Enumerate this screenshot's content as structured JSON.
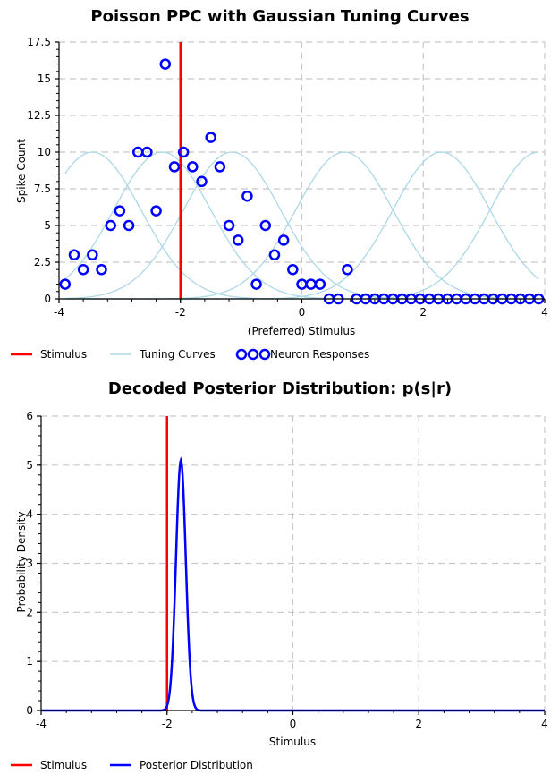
{
  "chart_data": [
    {
      "type": "scatter",
      "title": "Poisson PPC with Gaussian Tuning Curves",
      "xlabel": "(Preferred) Stimulus",
      "ylabel": "Spike Count",
      "xlim": [
        -4,
        4
      ],
      "ylim": [
        0,
        17.5
      ],
      "xticks": [
        -4,
        -2,
        0,
        2,
        4
      ],
      "yticks": [
        0,
        2.5,
        5,
        7.5,
        10,
        12.5,
        15,
        17.5
      ],
      "ytick_labels": [
        "0",
        "2.5",
        "5",
        "7.5",
        "10",
        "12.5",
        "15",
        "17.5"
      ],
      "xtick_labels": [
        "-4",
        "-2",
        "0",
        "2",
        "4"
      ],
      "stimulus": -2.0,
      "tuning_curves": {
        "centers": [
          -3.45,
          -2.3,
          -1.15,
          0.7,
          2.3,
          3.9
        ],
        "amplitude": 10,
        "width": 0.8,
        "x_range": [
          -3.9,
          3.9
        ]
      },
      "neurons": {
        "x": [
          -3.9,
          -3.75,
          -3.6,
          -3.45,
          -3.3,
          -3.15,
          -3.0,
          -2.85,
          -2.7,
          -2.55,
          -2.4,
          -2.25,
          -2.1,
          -1.95,
          -1.8,
          -1.65,
          -1.5,
          -1.35,
          -1.2,
          -1.05,
          -0.9,
          -0.75,
          -0.6,
          -0.45,
          -0.3,
          -0.15,
          0.0,
          0.15,
          0.3,
          0.45,
          0.6,
          0.75,
          0.9,
          1.05,
          1.2,
          1.35,
          1.5,
          1.65,
          1.8,
          1.95,
          2.1,
          2.25,
          2.4,
          2.55,
          2.7,
          2.85,
          3.0,
          3.15,
          3.3,
          3.45,
          3.6,
          3.75,
          3.9
        ],
        "y": [
          1,
          3,
          2,
          3,
          2,
          5,
          6,
          5,
          10,
          10,
          6,
          16,
          9,
          10,
          9,
          8,
          11,
          9,
          5,
          4,
          7,
          1,
          5,
          3,
          4,
          2,
          1,
          1,
          1,
          0,
          0,
          2,
          0,
          0,
          0,
          0,
          0,
          0,
          0,
          0,
          0,
          0,
          0,
          0,
          0,
          0,
          0,
          0,
          0,
          0,
          0,
          0,
          0
        ]
      },
      "legend": [
        {
          "label": "Stimulus",
          "color": "#ff0000"
        },
        {
          "label": "Tuning Curves",
          "color": "#add8e6"
        },
        {
          "label": "Neuron Responses",
          "color": "#0000ff"
        }
      ]
    },
    {
      "type": "line",
      "title": "Decoded Posterior Distribution: p(s|r)",
      "xlabel": "Stimulus",
      "ylabel": "Probability Density",
      "xlim": [
        -4,
        4
      ],
      "ylim": [
        0,
        6
      ],
      "xticks": [
        -4,
        -2,
        0,
        2,
        4
      ],
      "xtick_labels": [
        "-4",
        "-2",
        "0",
        "2",
        "4"
      ],
      "yticks": [
        0,
        1,
        2,
        3,
        4,
        5,
        6
      ],
      "ytick_labels": [
        "0",
        "1",
        "2",
        "3",
        "4",
        "5",
        "6"
      ],
      "stimulus": -2.0,
      "posterior": {
        "mean": -1.78,
        "sd": 0.078,
        "peak": 5.1
      },
      "legend": [
        {
          "label": "Stimulus",
          "color": "#ff0000"
        },
        {
          "label": "Posterior Distribution",
          "color": "#0000ff"
        }
      ]
    }
  ]
}
